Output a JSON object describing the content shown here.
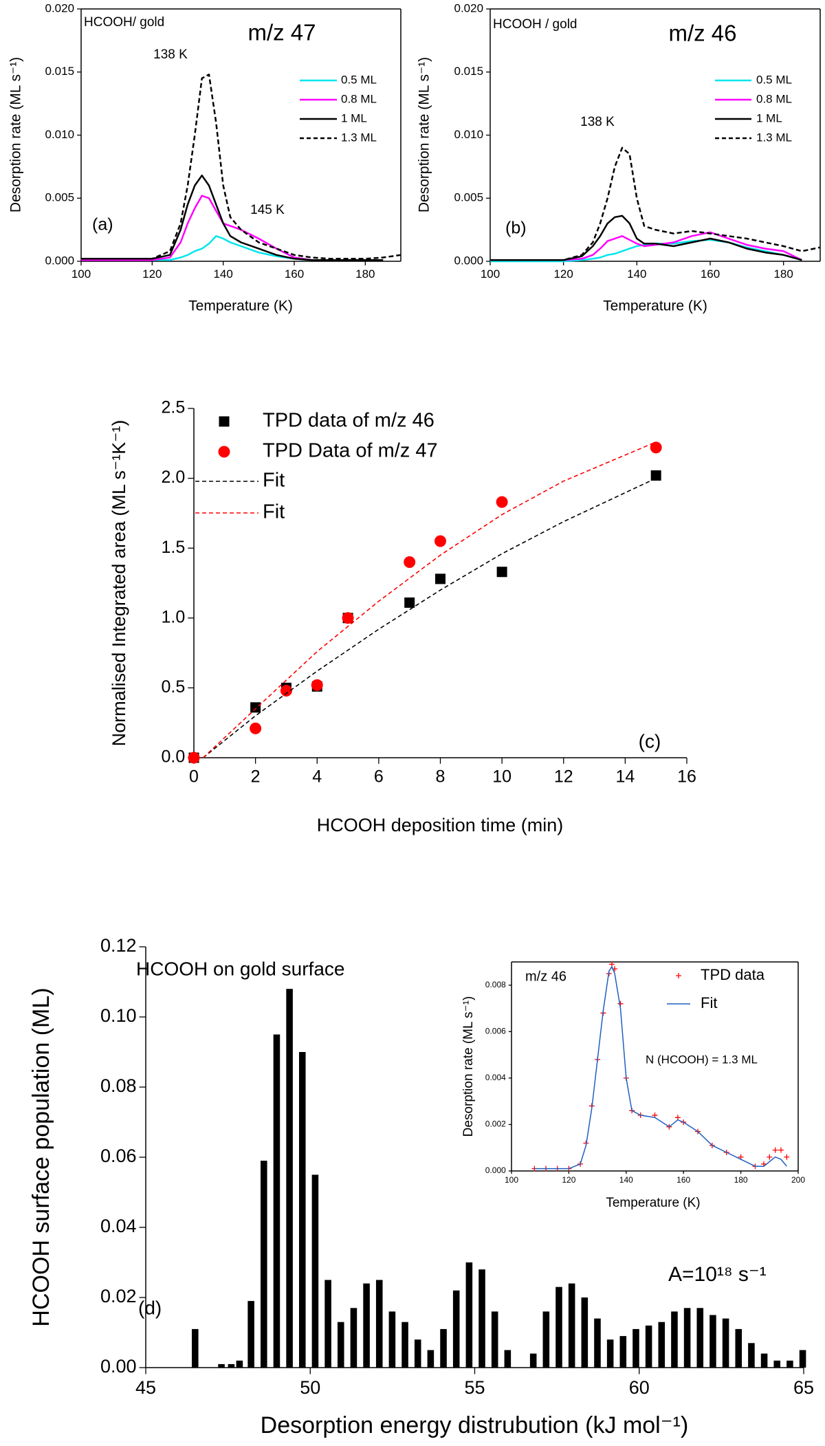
{
  "chart_data": [
    {
      "type": "line",
      "xlabel": "Temperature (K)",
      "ylabel": "Desorption rate (ML s⁻¹)",
      "annotations": [
        "HCOOH/ gold",
        "m/z 47",
        "138 K",
        "145 K",
        "(a)"
      ],
      "xlim": [
        100,
        190
      ],
      "ylim": [
        0,
        0.02
      ],
      "xticks": [
        100,
        120,
        140,
        160,
        180
      ],
      "yticks": [
        {
          "value": 0,
          "label": "0.000"
        },
        {
          "value": 0.005,
          "label": "0.005"
        },
        {
          "value": 0.01,
          "label": "0.010"
        },
        {
          "value": 0.015,
          "label": "0.015"
        },
        {
          "value": 0.02,
          "label": "0.020"
        }
      ],
      "legend": "upper right",
      "x": [
        100,
        105,
        110,
        115,
        120,
        125,
        128,
        130,
        132,
        134,
        136,
        138,
        140,
        142,
        145,
        150,
        155,
        160,
        165,
        170,
        175,
        180,
        185,
        190
      ],
      "series": [
        {
          "name": "0.5 ML",
          "color": "#00e5ee",
          "linestyle": "solid",
          "values": [
            0.0001,
            0.0001,
            0.0001,
            0.0001,
            0.0001,
            0.0001,
            0.0003,
            0.0005,
            0.0008,
            0.001,
            0.0014,
            0.002,
            0.0018,
            0.0015,
            0.0012,
            0.0007,
            0.0004,
            0.0002,
            0.0001,
            0.0001,
            0.0001,
            0.0001,
            0.0001,
            null
          ]
        },
        {
          "name": "0.8 ML",
          "color": "#ff00ff",
          "linestyle": "solid",
          "values": [
            0.0001,
            0.0001,
            0.0001,
            0.0001,
            0.0001,
            0.0003,
            0.0015,
            0.003,
            0.0042,
            0.0052,
            0.005,
            0.004,
            0.003,
            0.0028,
            0.0025,
            0.0018,
            0.001,
            0.0003,
            0.0001,
            0.0001,
            0.0001,
            0.0001,
            0.0001,
            null
          ]
        },
        {
          "name": "1 ML",
          "color": "#000000",
          "linestyle": "solid",
          "values": [
            0.0002,
            0.0002,
            0.0002,
            0.0002,
            0.0002,
            0.0005,
            0.0025,
            0.0045,
            0.006,
            0.0068,
            0.006,
            0.0045,
            0.003,
            0.002,
            0.0015,
            0.001,
            0.0005,
            0.0002,
            0.0001,
            0.0001,
            0.0001,
            0.0001,
            0.0001,
            null
          ]
        },
        {
          "name": "1.3 ML",
          "color": "#000000",
          "linestyle": "dashed",
          "values": [
            0.0002,
            0.0002,
            0.0002,
            0.0002,
            0.0002,
            0.0008,
            0.003,
            0.006,
            0.01,
            0.0145,
            0.0148,
            0.011,
            0.006,
            0.0035,
            0.0025,
            0.0015,
            0.001,
            0.0005,
            0.0003,
            0.0002,
            0.0002,
            0.0002,
            0.0003,
            0.0005
          ]
        }
      ]
    },
    {
      "type": "line",
      "xlabel": "Temperature (K)",
      "ylabel": "Desorption rate (ML s⁻¹)",
      "annotations": [
        "HCOOH / gold",
        "m/z 46",
        "138 K",
        "(b)"
      ],
      "xlim": [
        100,
        190
      ],
      "ylim": [
        0,
        0.02
      ],
      "xticks": [
        100,
        120,
        140,
        160,
        180
      ],
      "yticks": [
        {
          "value": 0,
          "label": "0.000"
        },
        {
          "value": 0.005,
          "label": "0.005"
        },
        {
          "value": 0.01,
          "label": "0.010"
        },
        {
          "value": 0.015,
          "label": "0.015"
        },
        {
          "value": 0.02,
          "label": "0.020"
        }
      ],
      "legend": "upper right",
      "x": [
        100,
        105,
        110,
        115,
        120,
        125,
        128,
        130,
        132,
        134,
        136,
        138,
        140,
        142,
        145,
        150,
        155,
        160,
        165,
        170,
        175,
        180,
        185,
        190
      ],
      "series": [
        {
          "name": "0.5 ML",
          "color": "#00e5ee",
          "linestyle": "solid",
          "values": [
            0,
            0,
            0,
            0,
            0,
            0.0001,
            0.0002,
            0.0003,
            0.0005,
            0.0006,
            0.0008,
            0.001,
            0.0012,
            0.0013,
            0.0014,
            0.0014,
            0.0016,
            0.0017,
            0.0015,
            0.0011,
            0.0008,
            0.0005,
            0.0001,
            null
          ]
        },
        {
          "name": "0.8 ML",
          "color": "#ff00ff",
          "linestyle": "solid",
          "values": [
            0.0001,
            0.0001,
            0.0001,
            0.0001,
            0.0001,
            0.0002,
            0.0005,
            0.001,
            0.0016,
            0.0018,
            0.002,
            0.0017,
            0.0014,
            0.0012,
            0.0013,
            0.0015,
            0.002,
            0.0023,
            0.0018,
            0.0013,
            0.001,
            0.0008,
            0.0001,
            null
          ]
        },
        {
          "name": "1 ML",
          "color": "#000000",
          "linestyle": "solid",
          "values": [
            0.0001,
            0.0001,
            0.0001,
            0.0001,
            0.0001,
            0.0004,
            0.0012,
            0.002,
            0.003,
            0.0035,
            0.0036,
            0.003,
            0.0018,
            0.0014,
            0.0014,
            0.0012,
            0.0015,
            0.0018,
            0.0015,
            0.001,
            0.0007,
            0.0005,
            0.0001,
            null
          ]
        },
        {
          "name": "1.3 ML",
          "color": "#000000",
          "linestyle": "dashed",
          "values": [
            0.0001,
            0.0001,
            0.0001,
            0.0001,
            0.0001,
            0.0005,
            0.0015,
            0.003,
            0.005,
            0.0075,
            0.009,
            0.0085,
            0.005,
            0.0028,
            0.0025,
            0.0022,
            0.0024,
            0.0022,
            0.002,
            0.0018,
            0.0015,
            0.0012,
            0.0008,
            0.0011
          ]
        }
      ]
    },
    {
      "type": "scatter",
      "xlabel": "HCOOH deposition time (min)",
      "ylabel": "Normalised Integrated area (ML s⁻¹K⁻¹)",
      "annotations": [
        "(c)"
      ],
      "xlim": [
        0,
        16
      ],
      "ylim": [
        0,
        2.5
      ],
      "xticks": [
        0,
        2,
        4,
        6,
        8,
        10,
        12,
        14,
        16
      ],
      "yticks": [
        {
          "value": 0,
          "label": "0.0"
        },
        {
          "value": 0.5,
          "label": "0.5"
        },
        {
          "value": 1,
          "label": "1.0"
        },
        {
          "value": 1.5,
          "label": "1.5"
        },
        {
          "value": 2,
          "label": "2.0"
        },
        {
          "value": 2.5,
          "label": "2.5"
        }
      ],
      "legend": "upper left",
      "series": [
        {
          "name": "TPD data of m/z 46",
          "color": "#000000",
          "marker": "square",
          "x": [
            0,
            2,
            3,
            4,
            5,
            7,
            8,
            10,
            15
          ],
          "values": [
            0,
            0.36,
            0.5,
            0.51,
            1.0,
            1.11,
            1.28,
            1.33,
            2.02
          ]
        },
        {
          "name": "TPD Data of m/z 47",
          "color": "#ff0000",
          "marker": "circle",
          "x": [
            0,
            2,
            3,
            4,
            5,
            7,
            8,
            10,
            15
          ],
          "values": [
            0,
            0.21,
            0.48,
            0.52,
            1.0,
            1.4,
            1.55,
            1.83,
            2.22
          ]
        },
        {
          "name": "Fit",
          "color": "#000000",
          "linestyle": "dashed",
          "x": [
            0.3,
            2,
            4,
            6,
            8,
            10,
            12,
            15
          ],
          "values": [
            0,
            0.3,
            0.62,
            0.92,
            1.2,
            1.46,
            1.69,
            2.0
          ]
        },
        {
          "name": "Fit",
          "color": "#ff0000",
          "linestyle": "dashed",
          "x": [
            0.3,
            2,
            4,
            6,
            8,
            10,
            12,
            15
          ],
          "values": [
            0,
            0.35,
            0.76,
            1.12,
            1.45,
            1.74,
            1.98,
            2.26
          ]
        }
      ]
    },
    {
      "type": "bar",
      "xlabel": "Desorption energy distrubution (kJ mol⁻¹)",
      "ylabel": "HCOOH surface population (ML)",
      "annotations": [
        "HCOOH on gold surface",
        "(d)",
        "A=10¹⁸ s⁻¹"
      ],
      "xlim": [
        45,
        65
      ],
      "ylim": [
        0,
        0.12
      ],
      "xticks": [
        45,
        50,
        55,
        60,
        65
      ],
      "yticks": [
        {
          "value": 0,
          "label": "0.00"
        },
        {
          "value": 0.02,
          "label": "0.02"
        },
        {
          "value": 0.04,
          "label": "0.04"
        },
        {
          "value": 0.06,
          "label": "0.06"
        },
        {
          "value": 0.08,
          "label": "0.08"
        },
        {
          "value": 0.1,
          "label": "0.10"
        },
        {
          "value": 0.12,
          "label": "0.12"
        }
      ],
      "color": "#000000",
      "x": [
        46.5,
        47.3,
        47.6,
        47.85,
        48.2,
        48.59,
        48.98,
        49.37,
        49.76,
        50.15,
        50.54,
        50.93,
        51.32,
        51.71,
        52.1,
        52.49,
        52.88,
        53.27,
        53.66,
        54.05,
        54.44,
        54.83,
        55.22,
        55.61,
        56.0,
        56.78,
        57.17,
        57.56,
        57.95,
        58.34,
        58.73,
        59.12,
        59.51,
        59.9,
        60.29,
        60.68,
        61.07,
        61.46,
        61.85,
        62.24,
        62.63,
        63.02,
        63.41,
        63.8,
        64.19,
        64.58,
        64.97
      ],
      "values": [
        0.011,
        0.001,
        0.001,
        0.002,
        0.019,
        0.059,
        0.095,
        0.108,
        0.09,
        0.055,
        0.025,
        0.013,
        0.017,
        0.024,
        0.025,
        0.016,
        0.013,
        0.008,
        0.005,
        0.011,
        0.022,
        0.03,
        0.028,
        0.016,
        0.005,
        0.004,
        0.016,
        0.023,
        0.024,
        0.02,
        0.014,
        0.008,
        0.009,
        0.011,
        0.012,
        0.013,
        0.016,
        0.017,
        0.017,
        0.015,
        0.014,
        0.011,
        0.007,
        0.004,
        0.002,
        0.002,
        0.005
      ]
    },
    {
      "type": "line",
      "xlabel": "Temperature (K)",
      "ylabel": "Desorption rate (ML s⁻¹)",
      "annotations": [
        "m/z 46",
        "N (HCOOH) = 1.3 ML"
      ],
      "xlim": [
        100,
        200
      ],
      "ylim": [
        0,
        0.009
      ],
      "xticks": [
        100,
        120,
        140,
        160,
        180,
        200
      ],
      "yticks": [
        {
          "value": 0,
          "label": "0.000"
        },
        {
          "value": 0.002,
          "label": "0.002"
        },
        {
          "value": 0.004,
          "label": "0.004"
        },
        {
          "value": 0.006,
          "label": "0.006"
        },
        {
          "value": 0.008,
          "label": "0.008"
        }
      ],
      "legend": "upper right",
      "x": [
        108,
        112,
        116,
        120,
        124,
        126,
        128,
        130,
        132,
        134,
        135,
        136,
        138,
        140,
        142,
        145,
        150,
        155,
        158,
        160,
        165,
        170,
        175,
        180,
        185,
        188,
        190,
        192,
        194,
        196
      ],
      "series": [
        {
          "name": "TPD data",
          "color": "#ff0000",
          "marker": "plus",
          "values": [
            0.0001,
            0.0001,
            0.0001,
            0.0001,
            0.0003,
            0.0012,
            0.0028,
            0.0048,
            0.0068,
            0.0085,
            0.0089,
            0.0087,
            0.0072,
            0.004,
            0.0026,
            0.0024,
            0.0024,
            0.0019,
            0.0023,
            0.0021,
            0.0017,
            0.0011,
            0.0008,
            0.0006,
            0.0002,
            0.0003,
            0.0006,
            0.0009,
            0.0009,
            0.0006
          ]
        },
        {
          "name": "Fit",
          "color": "#1f5fbf",
          "linestyle": "solid",
          "values": [
            0.0001,
            0.0001,
            0.0001,
            0.0001,
            0.0003,
            0.0011,
            0.0027,
            0.0048,
            0.0069,
            0.0086,
            0.0088,
            0.0085,
            0.007,
            0.004,
            0.0026,
            0.0024,
            0.0023,
            0.0019,
            0.0022,
            0.0021,
            0.0017,
            0.0011,
            0.0008,
            0.0005,
            0.0002,
            0.0002,
            0.0004,
            0.0006,
            0.0005,
            0.0002
          ]
        }
      ]
    }
  ]
}
